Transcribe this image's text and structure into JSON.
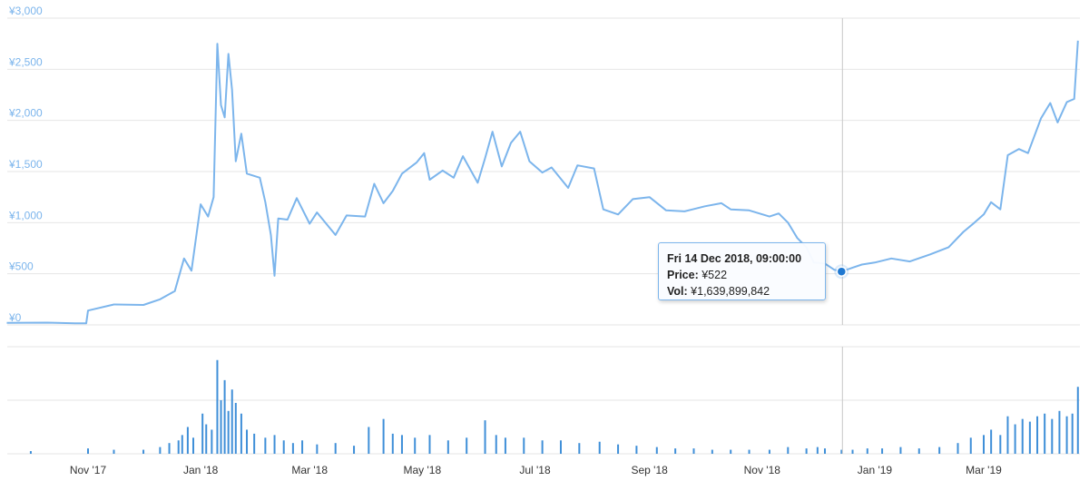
{
  "chart_data": {
    "type": "line",
    "y_axis": {
      "ylim": [
        0,
        3000
      ],
      "tick_labels": [
        "¥0",
        "¥500",
        "¥1,000",
        "¥1,500",
        "¥2,000",
        "¥2,500",
        "¥3,000"
      ],
      "tick_values": [
        0,
        500,
        1000,
        1500,
        2000,
        2500,
        3000
      ]
    },
    "x_axis": {
      "tick_labels": [
        "Nov '17",
        "Jan '18",
        "Mar '18",
        "May '18",
        "Jul '18",
        "Sep '18",
        "Nov '18",
        "Jan '19",
        "Mar '19"
      ],
      "tick_dates": [
        "2017-11-01",
        "2018-01-01",
        "2018-03-01",
        "2018-05-01",
        "2018-07-01",
        "2018-09-01",
        "2018-11-01",
        "2019-01-01",
        "2019-03-01"
      ]
    },
    "grid": true,
    "colors": {
      "series": "#7cb5ec",
      "marker": "#1f78d1",
      "volume_bars": "#3f8fd8",
      "grid": "#e6e6e6"
    },
    "series": [
      {
        "kind": "price",
        "points": [
          [
            "2017-09-18",
            20
          ],
          [
            "2017-10-10",
            22
          ],
          [
            "2017-10-25",
            15
          ],
          [
            "2017-10-31",
            15
          ],
          [
            "2017-11-01",
            140
          ],
          [
            "2017-11-15",
            200
          ],
          [
            "2017-12-01",
            195
          ],
          [
            "2017-12-10",
            250
          ],
          [
            "2017-12-18",
            330
          ],
          [
            "2017-12-23",
            650
          ],
          [
            "2017-12-27",
            530
          ],
          [
            "2018-01-01",
            1180
          ],
          [
            "2018-01-05",
            1060
          ],
          [
            "2018-01-08",
            1250
          ],
          [
            "2018-01-10",
            2750
          ],
          [
            "2018-01-12",
            2150
          ],
          [
            "2018-01-14",
            2030
          ],
          [
            "2018-01-16",
            2650
          ],
          [
            "2018-01-18",
            2300
          ],
          [
            "2018-01-20",
            1600
          ],
          [
            "2018-01-23",
            1870
          ],
          [
            "2018-01-26",
            1480
          ],
          [
            "2018-02-02",
            1440
          ],
          [
            "2018-02-05",
            1200
          ],
          [
            "2018-02-08",
            880
          ],
          [
            "2018-02-10",
            480
          ],
          [
            "2018-02-12",
            1040
          ],
          [
            "2018-02-17",
            1030
          ],
          [
            "2018-02-22",
            1240
          ],
          [
            "2018-03-01",
            990
          ],
          [
            "2018-03-05",
            1100
          ],
          [
            "2018-03-15",
            880
          ],
          [
            "2018-03-21",
            1070
          ],
          [
            "2018-03-31",
            1060
          ],
          [
            "2018-04-05",
            1380
          ],
          [
            "2018-04-10",
            1190
          ],
          [
            "2018-04-15",
            1310
          ],
          [
            "2018-04-20",
            1480
          ],
          [
            "2018-04-28",
            1590
          ],
          [
            "2018-05-02",
            1680
          ],
          [
            "2018-05-05",
            1420
          ],
          [
            "2018-05-12",
            1510
          ],
          [
            "2018-05-18",
            1440
          ],
          [
            "2018-05-23",
            1650
          ],
          [
            "2018-05-31",
            1390
          ],
          [
            "2018-06-04",
            1630
          ],
          [
            "2018-06-08",
            1890
          ],
          [
            "2018-06-13",
            1550
          ],
          [
            "2018-06-18",
            1780
          ],
          [
            "2018-06-23",
            1890
          ],
          [
            "2018-06-28",
            1600
          ],
          [
            "2018-07-05",
            1490
          ],
          [
            "2018-07-10",
            1540
          ],
          [
            "2018-07-19",
            1340
          ],
          [
            "2018-07-24",
            1560
          ],
          [
            "2018-08-02",
            1530
          ],
          [
            "2018-08-07",
            1130
          ],
          [
            "2018-08-15",
            1080
          ],
          [
            "2018-08-23",
            1230
          ],
          [
            "2018-09-01",
            1250
          ],
          [
            "2018-09-10",
            1120
          ],
          [
            "2018-09-20",
            1110
          ],
          [
            "2018-10-01",
            1160
          ],
          [
            "2018-10-10",
            1190
          ],
          [
            "2018-10-15",
            1130
          ],
          [
            "2018-10-25",
            1120
          ],
          [
            "2018-11-05",
            1060
          ],
          [
            "2018-11-10",
            1090
          ],
          [
            "2018-11-15",
            1000
          ],
          [
            "2018-11-20",
            850
          ],
          [
            "2018-11-25",
            760
          ],
          [
            "2018-11-29",
            610
          ],
          [
            "2018-12-05",
            600
          ],
          [
            "2018-12-10",
            540
          ],
          [
            "2018-12-14",
            522
          ],
          [
            "2018-12-20",
            560
          ],
          [
            "2018-12-25",
            590
          ],
          [
            "2019-01-01",
            610
          ],
          [
            "2019-01-10",
            650
          ],
          [
            "2019-01-20",
            620
          ],
          [
            "2019-01-31",
            690
          ],
          [
            "2019-02-10",
            760
          ],
          [
            "2019-02-18",
            910
          ],
          [
            "2019-02-24",
            1000
          ],
          [
            "2019-03-01",
            1080
          ],
          [
            "2019-03-05",
            1200
          ],
          [
            "2019-03-10",
            1130
          ],
          [
            "2019-03-14",
            1660
          ],
          [
            "2019-03-20",
            1720
          ],
          [
            "2019-03-25",
            1680
          ],
          [
            "2019-04-01",
            2020
          ],
          [
            "2019-04-06",
            2170
          ],
          [
            "2019-04-10",
            1980
          ],
          [
            "2019-04-15",
            2180
          ],
          [
            "2019-04-19",
            2210
          ],
          [
            "2019-04-21",
            2780
          ]
        ]
      },
      {
        "kind": "volume",
        "bars": [
          [
            "2017-10-01",
            2
          ],
          [
            "2017-11-01",
            4
          ],
          [
            "2017-11-15",
            3
          ],
          [
            "2017-12-01",
            3
          ],
          [
            "2017-12-10",
            5
          ],
          [
            "2017-12-15",
            8
          ],
          [
            "2017-12-20",
            10
          ],
          [
            "2017-12-22",
            14
          ],
          [
            "2017-12-25",
            20
          ],
          [
            "2017-12-28",
            12
          ],
          [
            "2018-01-02",
            30
          ],
          [
            "2018-01-04",
            22
          ],
          [
            "2018-01-07",
            18
          ],
          [
            "2018-01-10",
            70
          ],
          [
            "2018-01-12",
            40
          ],
          [
            "2018-01-14",
            55
          ],
          [
            "2018-01-16",
            32
          ],
          [
            "2018-01-18",
            48
          ],
          [
            "2018-01-20",
            38
          ],
          [
            "2018-01-23",
            30
          ],
          [
            "2018-01-26",
            18
          ],
          [
            "2018-01-30",
            15
          ],
          [
            "2018-02-05",
            12
          ],
          [
            "2018-02-10",
            14
          ],
          [
            "2018-02-15",
            10
          ],
          [
            "2018-02-20",
            8
          ],
          [
            "2018-02-25",
            10
          ],
          [
            "2018-03-05",
            7
          ],
          [
            "2018-03-15",
            8
          ],
          [
            "2018-03-25",
            6
          ],
          [
            "2018-04-02",
            20
          ],
          [
            "2018-04-10",
            26
          ],
          [
            "2018-04-15",
            15
          ],
          [
            "2018-04-20",
            14
          ],
          [
            "2018-04-27",
            12
          ],
          [
            "2018-05-05",
            14
          ],
          [
            "2018-05-15",
            10
          ],
          [
            "2018-05-25",
            12
          ],
          [
            "2018-06-04",
            25
          ],
          [
            "2018-06-10",
            14
          ],
          [
            "2018-06-15",
            12
          ],
          [
            "2018-06-25",
            12
          ],
          [
            "2018-07-05",
            10
          ],
          [
            "2018-07-15",
            10
          ],
          [
            "2018-07-25",
            8
          ],
          [
            "2018-08-05",
            9
          ],
          [
            "2018-08-15",
            7
          ],
          [
            "2018-08-25",
            6
          ],
          [
            "2018-09-05",
            5
          ],
          [
            "2018-09-15",
            4
          ],
          [
            "2018-09-25",
            4
          ],
          [
            "2018-10-05",
            3
          ],
          [
            "2018-10-15",
            3
          ],
          [
            "2018-10-25",
            3
          ],
          [
            "2018-11-05",
            3
          ],
          [
            "2018-11-15",
            5
          ],
          [
            "2018-11-25",
            4
          ],
          [
            "2018-12-01",
            5
          ],
          [
            "2018-12-05",
            4
          ],
          [
            "2018-12-14",
            3
          ],
          [
            "2018-12-20",
            3
          ],
          [
            "2018-12-28",
            4
          ],
          [
            "2019-01-05",
            4
          ],
          [
            "2019-01-15",
            5
          ],
          [
            "2019-01-25",
            4
          ],
          [
            "2019-02-05",
            5
          ],
          [
            "2019-02-15",
            8
          ],
          [
            "2019-02-22",
            12
          ],
          [
            "2019-03-01",
            14
          ],
          [
            "2019-03-05",
            18
          ],
          [
            "2019-03-10",
            14
          ],
          [
            "2019-03-14",
            28
          ],
          [
            "2019-03-18",
            22
          ],
          [
            "2019-03-22",
            26
          ],
          [
            "2019-03-26",
            24
          ],
          [
            "2019-03-30",
            28
          ],
          [
            "2019-04-03",
            30
          ],
          [
            "2019-04-07",
            26
          ],
          [
            "2019-04-11",
            32
          ],
          [
            "2019-04-15",
            28
          ],
          [
            "2019-04-18",
            30
          ],
          [
            "2019-04-21",
            50
          ]
        ]
      }
    ]
  },
  "tooltip": {
    "date": "Fri 14 Dec 2018, 09:00:00",
    "price_label": "Price:",
    "price_value": "¥522",
    "vol_label": "Vol:",
    "vol_value": "¥1,639,899,842",
    "hover_date": "2018-12-14"
  }
}
